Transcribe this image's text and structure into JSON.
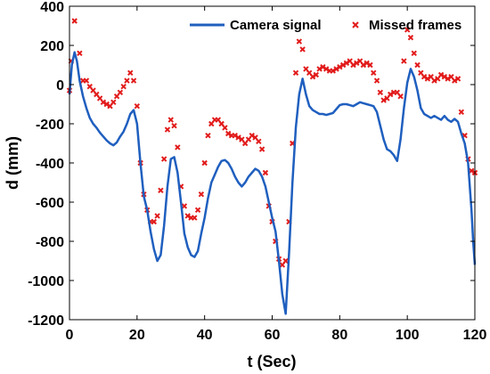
{
  "chart_data": {
    "type": "line",
    "title": "",
    "xlabel": "t (Sec)",
    "ylabel": "d (mm)",
    "xlim": [
      0,
      120
    ],
    "ylim": [
      -1200,
      400
    ],
    "xticks": [
      0,
      20,
      40,
      60,
      80,
      100,
      120
    ],
    "yticks": [
      -1200,
      -1000,
      -800,
      -600,
      -400,
      -200,
      0,
      200,
      400
    ],
    "grid": false,
    "legend_position": "top-right",
    "series": [
      {
        "name": "Camera signal",
        "style": "line",
        "color": "#1f5fbf",
        "x": [
          0,
          0.7,
          1.5,
          2.2,
          3,
          4,
          5,
          6,
          7,
          8,
          9,
          10,
          11,
          12,
          13,
          14,
          15,
          16,
          17,
          18,
          19,
          20,
          21,
          22,
          23,
          24,
          25,
          26,
          27,
          28,
          29,
          30,
          31,
          32,
          33,
          34,
          35,
          36,
          37,
          38,
          39,
          40,
          41,
          42,
          43,
          44,
          45,
          46,
          47,
          48,
          49,
          50,
          51,
          52,
          53,
          54,
          55,
          56,
          57,
          58,
          59,
          60,
          61,
          62,
          63,
          64,
          65,
          66,
          67,
          68,
          69,
          70,
          71,
          72,
          73,
          74,
          75,
          76,
          77,
          78,
          79,
          80,
          81,
          82,
          83,
          84,
          85,
          86,
          87,
          88,
          89,
          90,
          91,
          92,
          93,
          94,
          95,
          96,
          97,
          98,
          99,
          100,
          101,
          102,
          103,
          104,
          105,
          106,
          107,
          108,
          109,
          110,
          111,
          112,
          113,
          114,
          115,
          116,
          117,
          118,
          119,
          119.5,
          120
        ],
        "y": [
          -50,
          100,
          165,
          120,
          20,
          -60,
          -120,
          -170,
          -200,
          -220,
          -245,
          -265,
          -285,
          -300,
          -310,
          -295,
          -265,
          -240,
          -200,
          -150,
          -130,
          -200,
          -400,
          -570,
          -640,
          -750,
          -840,
          -900,
          -870,
          -720,
          -520,
          -380,
          -370,
          -450,
          -600,
          -760,
          -830,
          -870,
          -880,
          -850,
          -760,
          -680,
          -580,
          -500,
          -460,
          -420,
          -390,
          -385,
          -400,
          -430,
          -470,
          -500,
          -520,
          -500,
          -470,
          -450,
          -430,
          -440,
          -470,
          -520,
          -600,
          -680,
          -750,
          -900,
          -1070,
          -1170,
          -860,
          -500,
          -220,
          -50,
          30,
          -50,
          -110,
          -130,
          -140,
          -150,
          -150,
          -155,
          -150,
          -145,
          -125,
          -105,
          -100,
          -100,
          -105,
          -110,
          -100,
          -90,
          -95,
          -100,
          -105,
          -110,
          -140,
          -210,
          -280,
          -330,
          -340,
          -360,
          -390,
          -280,
          -120,
          10,
          80,
          40,
          -30,
          -120,
          -150,
          -160,
          -170,
          -160,
          -170,
          -180,
          -160,
          -180,
          -190,
          -175,
          -190,
          -250,
          -300,
          -400,
          -640,
          -800,
          -920
        ]
      },
      {
        "name": "Missed frames",
        "style": "markers",
        "color": "#e21b1b",
        "x": [
          0,
          0.5,
          1.5,
          3,
          4,
          5,
          6,
          7,
          8,
          9,
          10,
          11,
          12,
          13,
          14,
          15,
          16,
          17,
          18,
          19,
          20,
          21,
          22,
          23,
          24,
          25,
          26,
          27,
          28,
          29,
          30,
          31,
          32,
          33,
          34,
          35,
          36,
          37,
          38,
          39,
          40,
          41,
          42,
          43,
          44,
          45,
          46,
          47,
          48,
          49,
          50,
          51,
          52,
          53,
          54,
          55,
          56,
          57,
          58,
          59,
          60,
          61,
          62,
          63,
          64,
          65,
          66,
          67,
          68,
          69,
          70,
          71,
          72,
          73,
          74,
          75,
          76,
          77,
          78,
          79,
          80,
          81,
          82,
          83,
          84,
          85,
          86,
          87,
          88,
          89,
          90,
          91,
          92,
          93,
          94,
          95,
          96,
          97,
          98,
          99,
          100,
          101,
          102,
          103,
          104,
          105,
          106,
          107,
          108,
          109,
          110,
          111,
          112,
          113,
          114,
          115,
          116,
          117,
          118,
          119,
          120
        ],
        "y": [
          -30,
          120,
          325,
          160,
          20,
          20,
          -10,
          -30,
          -50,
          -70,
          -90,
          -100,
          -110,
          -90,
          -60,
          -40,
          -10,
          20,
          60,
          20,
          -110,
          -400,
          -560,
          -640,
          -700,
          -700,
          -670,
          -540,
          -380,
          -230,
          -180,
          -210,
          -320,
          -520,
          -620,
          -670,
          -680,
          -680,
          -640,
          -560,
          -400,
          -260,
          -200,
          -180,
          -180,
          -200,
          -220,
          -250,
          -260,
          -260,
          -270,
          -280,
          -300,
          -280,
          -260,
          -270,
          -290,
          -330,
          -450,
          -620,
          -700,
          -800,
          -890,
          -920,
          -900,
          -700,
          -300,
          60,
          220,
          180,
          80,
          60,
          40,
          50,
          80,
          90,
          80,
          70,
          70,
          80,
          90,
          100,
          110,
          120,
          100,
          110,
          120,
          100,
          110,
          100,
          60,
          20,
          -40,
          -80,
          -70,
          -50,
          -40,
          -40,
          -60,
          120,
          280,
          240,
          160,
          100,
          60,
          40,
          30,
          40,
          20,
          30,
          50,
          40,
          30,
          40,
          20,
          30,
          -140,
          -260,
          -380,
          -440,
          -450
        ]
      }
    ]
  }
}
